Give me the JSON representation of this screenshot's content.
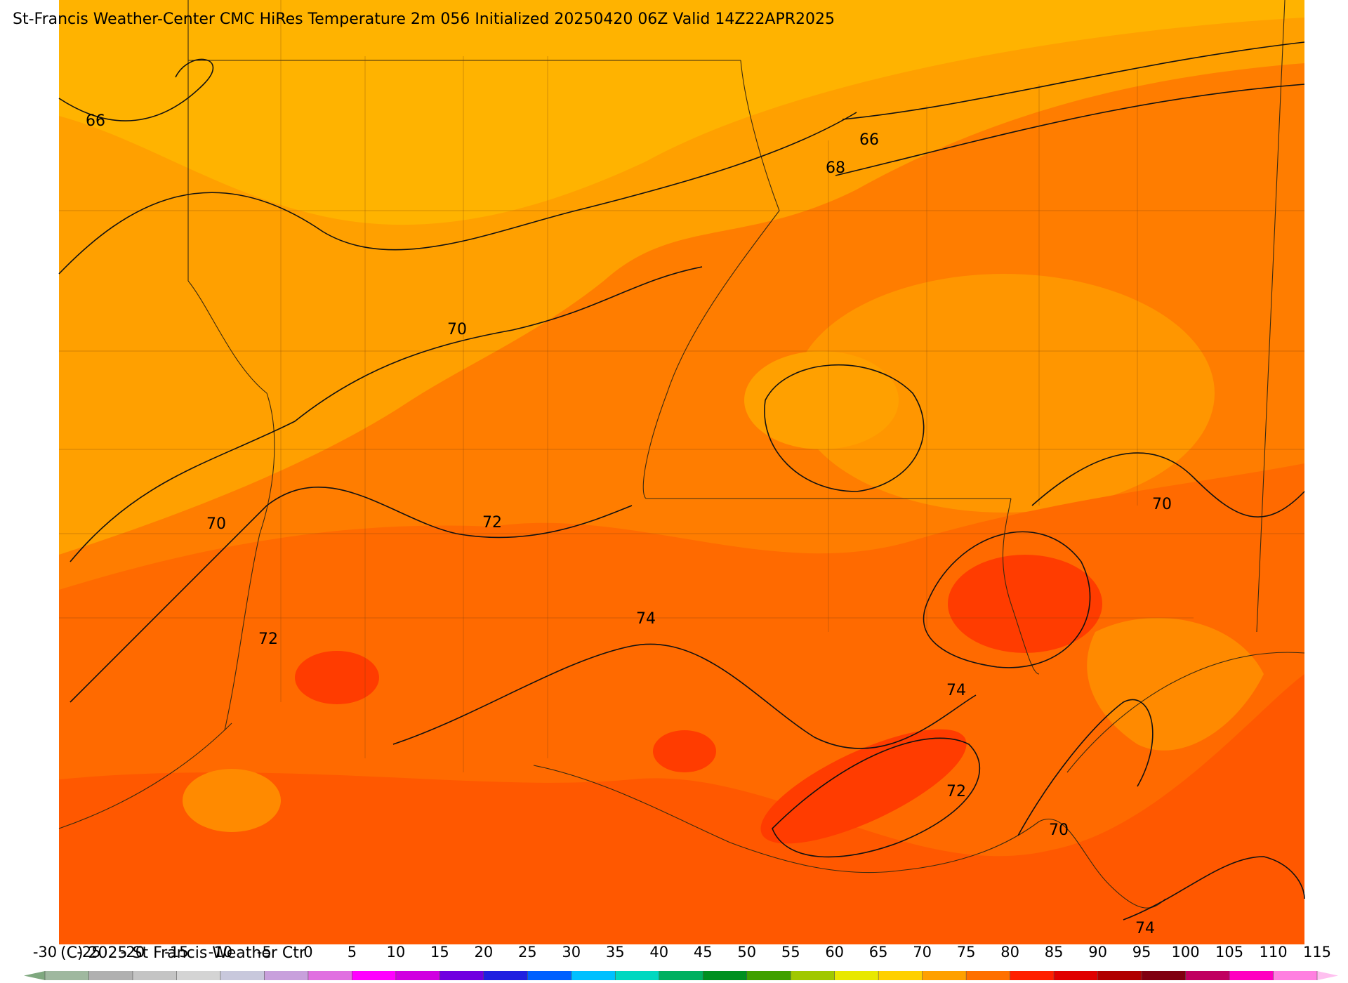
{
  "title": "St-Francis Weather-Center CMC HiRes Temperature 2m  056 Initialized 20250420 06Z Valid 14Z22APR2025",
  "contour_labels": [
    "66",
    "66",
    "68",
    "70",
    "70",
    "72",
    "70",
    "72",
    "74",
    "74",
    "72",
    "70",
    "74"
  ],
  "colorbar": {
    "ticks": [
      -30,
      -25,
      -20,
      -15,
      -10,
      -5,
      0,
      5,
      10,
      15,
      20,
      25,
      30,
      35,
      40,
      45,
      50,
      55,
      60,
      65,
      70,
      75,
      80,
      85,
      90,
      95,
      100,
      105,
      110,
      115
    ]
  },
  "copyright": "(C) 2025 St Francis Weather Ctr"
}
